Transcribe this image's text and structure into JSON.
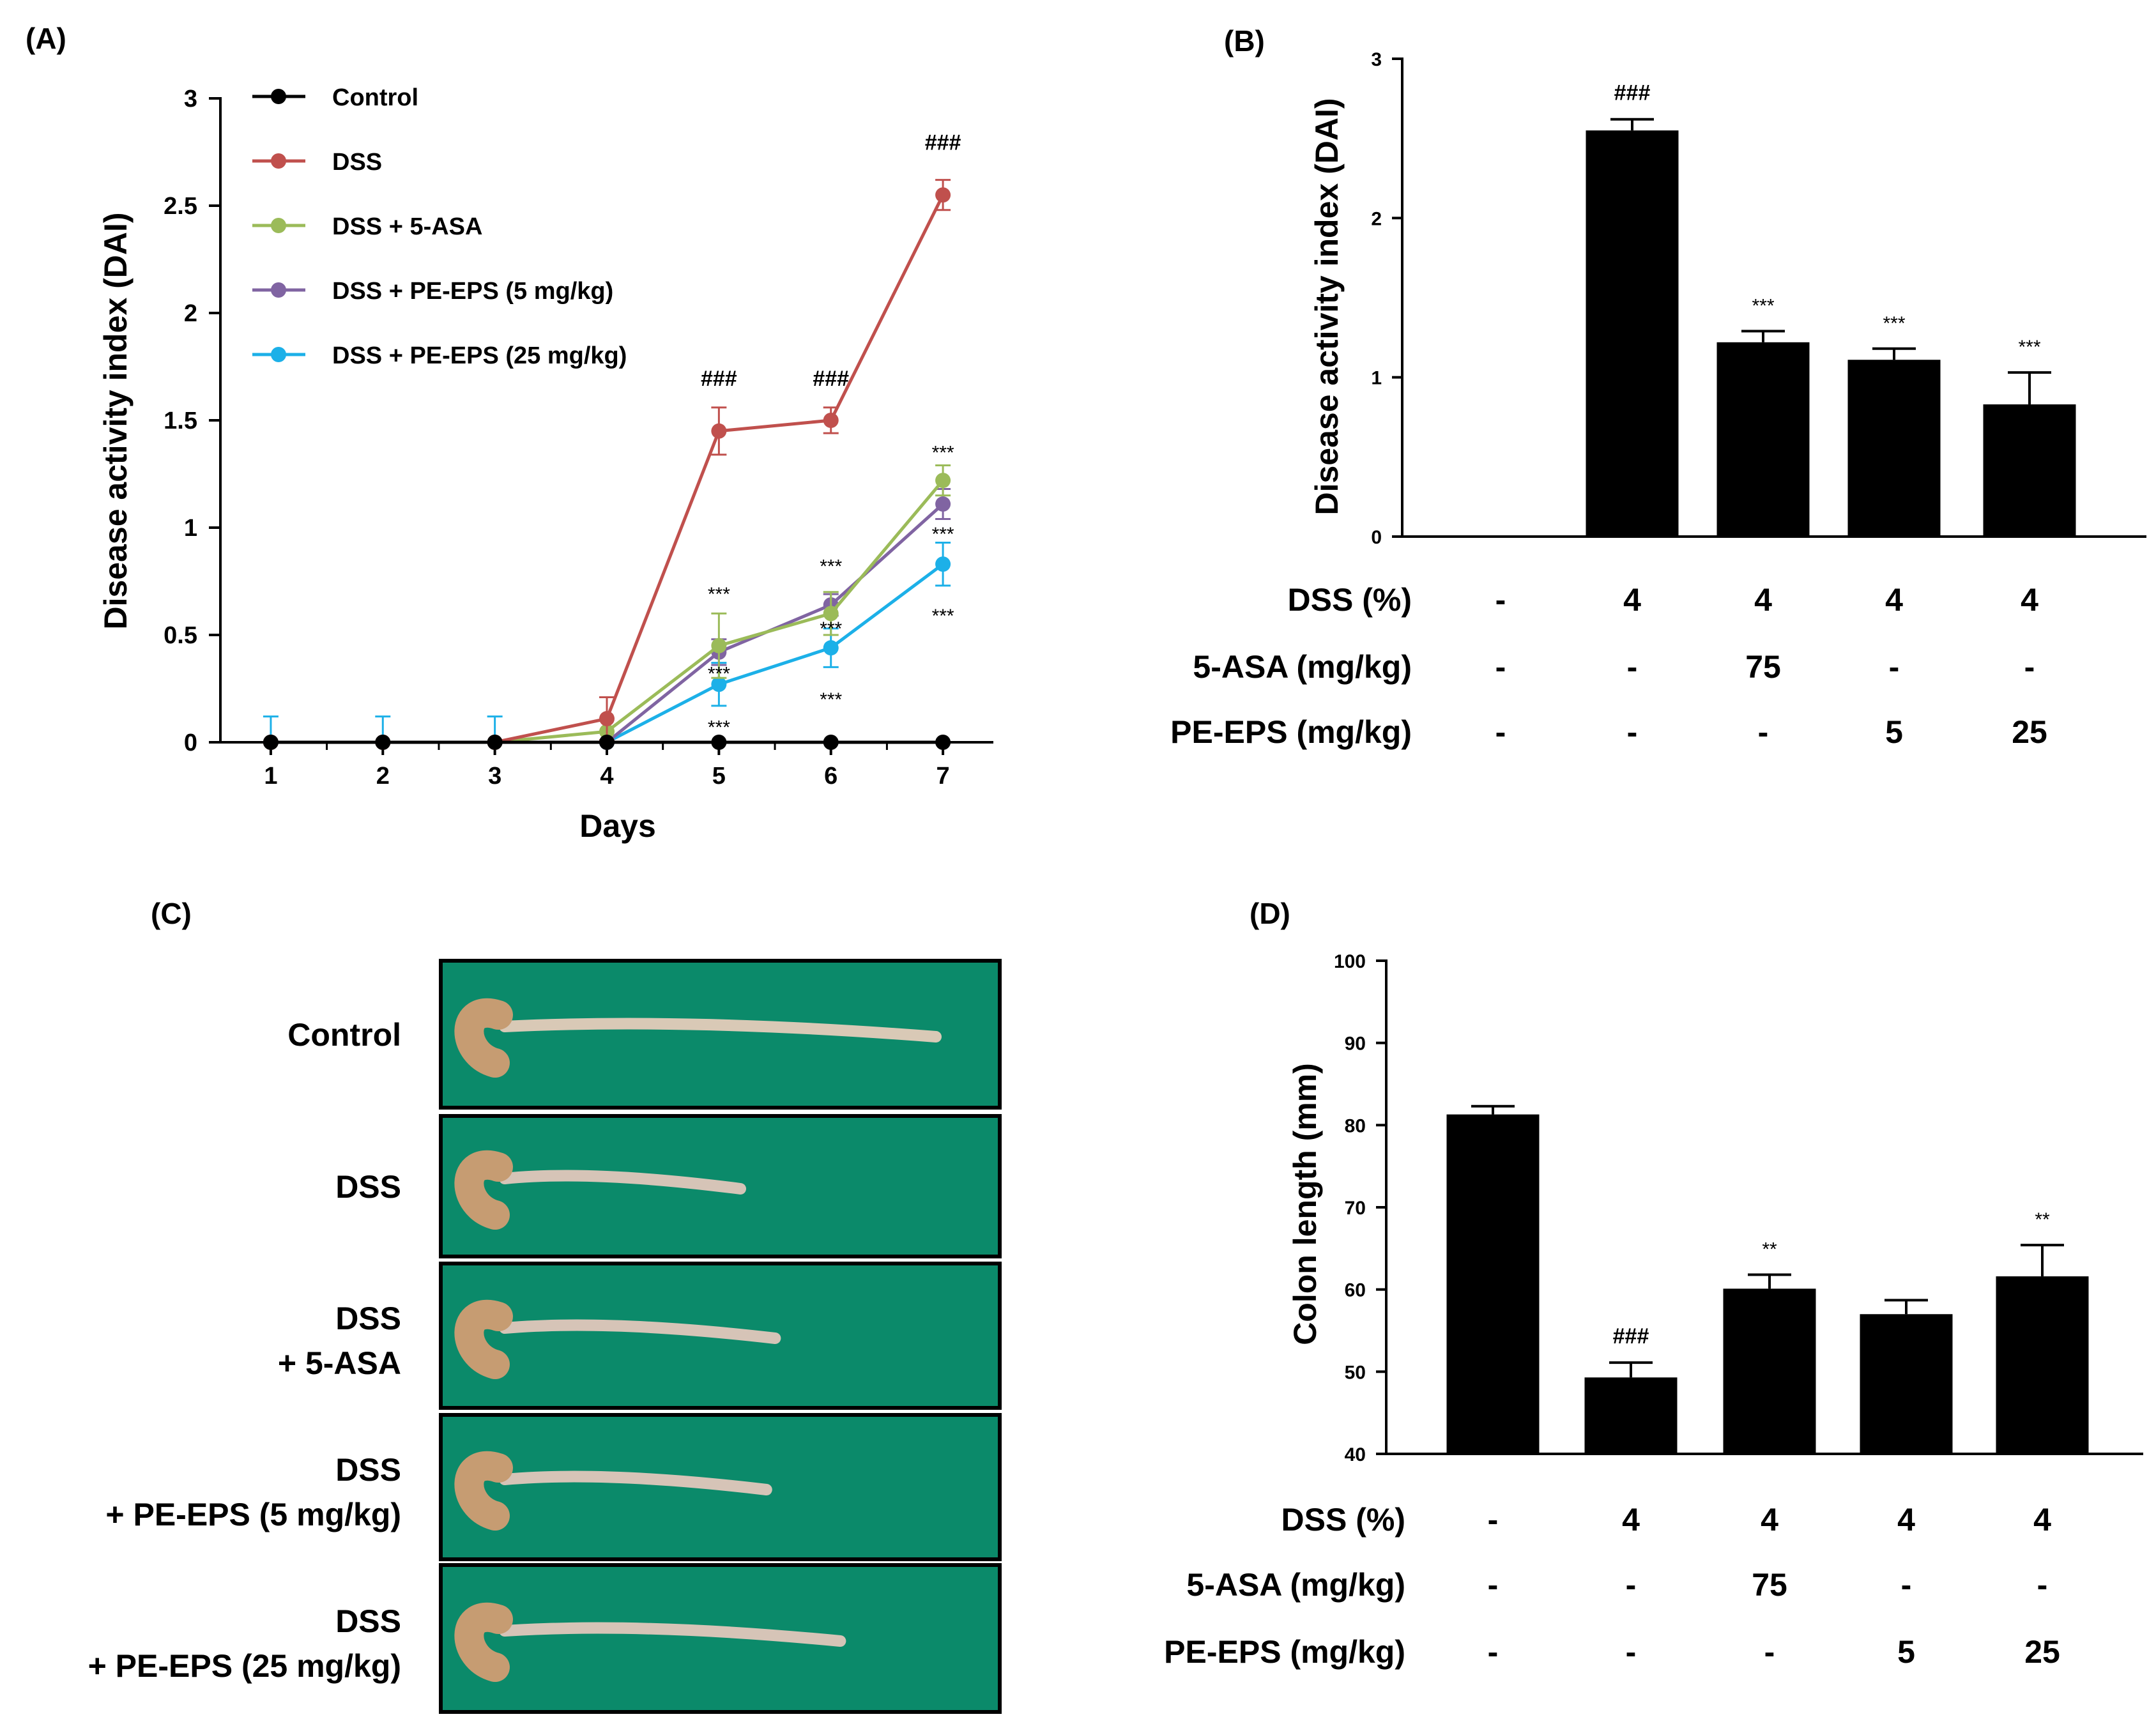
{
  "panels": {
    "a": "(A)",
    "b": "(B)",
    "c": "(C)",
    "d": "(D)"
  },
  "chart_data": [
    {
      "type": "line",
      "panel": "(A)",
      "title": "",
      "xlabel": "Days",
      "ylabel": "Disease activity index (DAI)",
      "x": [
        1,
        2,
        3,
        4,
        5,
        6,
        7
      ],
      "ylim": [
        0,
        3
      ],
      "yticks": [
        0,
        0.5,
        1,
        1.5,
        2,
        2.5,
        3
      ],
      "ytick_labels": [
        "0",
        "0.5",
        "1",
        "1.5",
        "2",
        "2.5",
        "3"
      ],
      "legend_position": "top-left",
      "series": [
        {
          "name": "Control",
          "color": "#000000",
          "values": [
            0,
            0,
            0,
            0,
            0,
            0,
            0
          ],
          "errors": [
            0,
            0,
            0,
            0,
            0,
            0,
            0
          ]
        },
        {
          "name": "DSS",
          "color": "#c0504d",
          "values": [
            0,
            0,
            0,
            0.11,
            1.45,
            1.5,
            2.55
          ],
          "errors": [
            0,
            0,
            0,
            0.1,
            0.11,
            0.06,
            0.07
          ]
        },
        {
          "name": "DSS + 5-ASA",
          "color": "#9bbb59",
          "values": [
            0,
            0,
            0,
            0.05,
            0.45,
            0.6,
            1.22
          ],
          "errors": [
            0,
            0,
            0,
            0,
            0.15,
            0.1,
            0.07
          ]
        },
        {
          "name": "DSS + PE-EPS (5 mg/kg)",
          "color": "#8064a2",
          "values": [
            0,
            0,
            0,
            0,
            0.42,
            0.64,
            1.11
          ],
          "errors": [
            0,
            0,
            0,
            0,
            0.06,
            0.05,
            0.07
          ]
        },
        {
          "name": "DSS + PE-EPS (25 mg/kg)",
          "color": "#1cb0e8",
          "values": [
            0,
            0,
            0,
            0,
            0.27,
            0.44,
            0.83
          ],
          "errors": [
            0.12,
            0.12,
            0.12,
            0,
            0.1,
            0.09,
            0.1
          ]
        }
      ],
      "annotations": [
        {
          "text": "###",
          "x": 5,
          "y": 1.66
        },
        {
          "text": "###",
          "x": 6,
          "y": 1.66
        },
        {
          "text": "###",
          "x": 7,
          "y": 2.76
        },
        {
          "text": "***",
          "x": 5,
          "y": 0.66
        },
        {
          "text": "***",
          "x": 5,
          "y": 0.29
        },
        {
          "text": "***",
          "x": 5,
          "y": 0.04
        },
        {
          "text": "***",
          "x": 6,
          "y": 0.79
        },
        {
          "text": "***",
          "x": 6,
          "y": 0.5
        },
        {
          "text": "***",
          "x": 6,
          "y": 0.17
        },
        {
          "text": "***",
          "x": 7,
          "y": 1.32
        },
        {
          "text": "***",
          "x": 7,
          "y": 0.94
        },
        {
          "text": "***",
          "x": 7,
          "y": 0.56
        }
      ]
    },
    {
      "type": "bar",
      "panel": "(B)",
      "xlabel": "",
      "ylabel": "Disease activity index (DAI)",
      "categories": [
        "Control",
        "DSS",
        "DSS + 5-ASA",
        "DSS + PE-EPS (5 mg/kg)",
        "DSS + PE-EPS (25 mg/kg)"
      ],
      "values": [
        0,
        2.55,
        1.22,
        1.11,
        0.83
      ],
      "errors": [
        0,
        0.07,
        0.07,
        0.07,
        0.2
      ],
      "significance": [
        "",
        "###",
        "***",
        "***",
        "***"
      ],
      "ylim": [
        0,
        3
      ],
      "yticks": [
        0,
        1,
        2,
        3
      ],
      "ytick_labels": [
        "0",
        "1",
        "2",
        "3"
      ],
      "table": [
        {
          "label": "DSS (%)",
          "values": [
            "-",
            "4",
            "4",
            "4",
            "4"
          ]
        },
        {
          "label": "5-ASA (mg/kg)",
          "values": [
            "-",
            "-",
            "75",
            "-",
            "-"
          ]
        },
        {
          "label": "PE-EPS (mg/kg)",
          "values": [
            "-",
            "-",
            "-",
            "5",
            "25"
          ]
        }
      ]
    },
    {
      "type": "bar",
      "panel": "(D)",
      "xlabel": "",
      "ylabel": "Colon length (mm)",
      "categories": [
        "Control",
        "DSS",
        "DSS + 5-ASA",
        "DSS + PE-EPS (5 mg/kg)",
        "DSS + PE-EPS (25 mg/kg)"
      ],
      "values": [
        81.3,
        49.3,
        60.1,
        57,
        61.6
      ],
      "errors": [
        1.0,
        1.8,
        1.7,
        1.7,
        3.8
      ],
      "significance": [
        "",
        "###",
        "**",
        "",
        "**"
      ],
      "ylim": [
        40,
        100
      ],
      "yticks": [
        40,
        50,
        60,
        70,
        80,
        90,
        100
      ],
      "ytick_labels": [
        "40",
        "50",
        "60",
        "70",
        "80",
        "90",
        "100"
      ],
      "table": [
        {
          "label": "DSS (%)",
          "values": [
            "-",
            "4",
            "4",
            "4",
            "4"
          ]
        },
        {
          "label": "5-ASA (mg/kg)",
          "values": [
            "-",
            "-",
            "75",
            "-",
            "-"
          ]
        },
        {
          "label": "PE-EPS (mg/kg)",
          "values": [
            "-",
            "-",
            "-",
            "5",
            "25"
          ]
        }
      ]
    }
  ],
  "photos": {
    "labels": [
      [
        "Control"
      ],
      [
        "DSS"
      ],
      [
        "DSS",
        "+ 5-ASA"
      ],
      [
        "DSS",
        "+ PE-EPS (5 mg/kg)"
      ],
      [
        "DSS",
        "+ PE-EPS (25 mg/kg)"
      ]
    ],
    "colon_relative_length": [
      1.0,
      0.55,
      0.63,
      0.61,
      0.78
    ],
    "background_color": "#0b8a6a"
  }
}
